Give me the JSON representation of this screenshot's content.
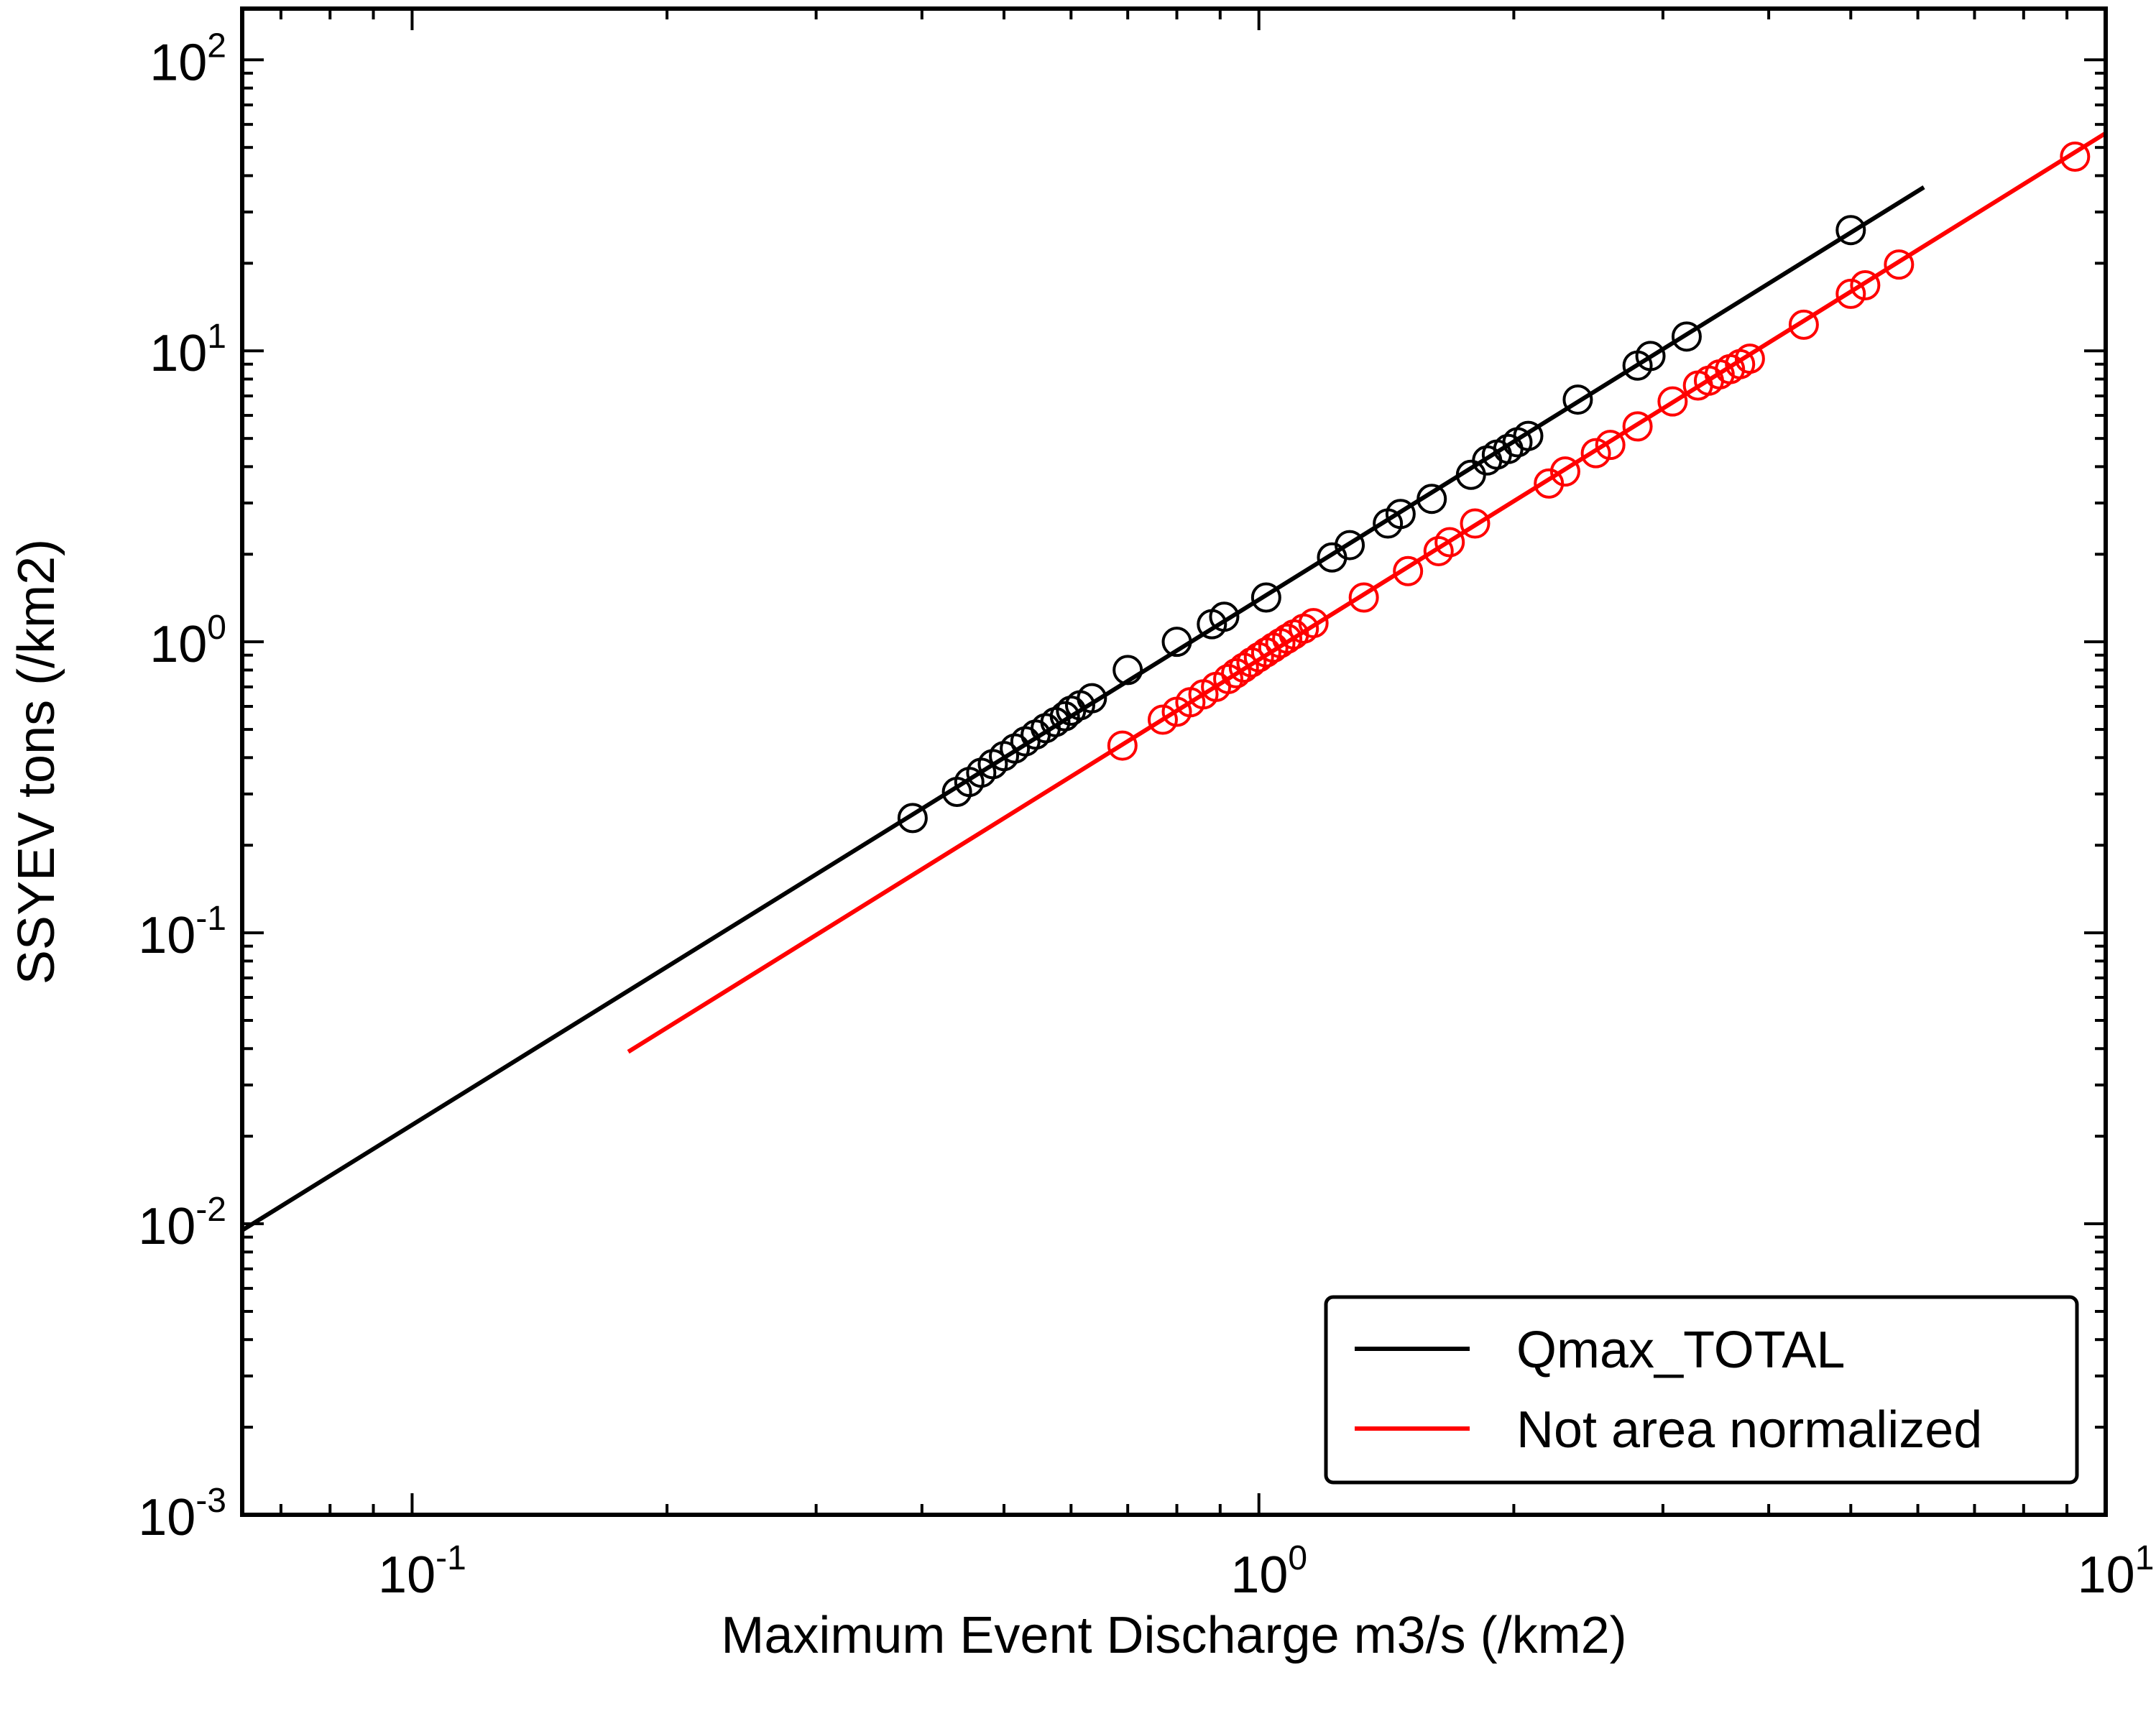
{
  "chart_data": {
    "type": "scatter",
    "xlabel": "Maximum Event Discharge m3/s (/km2)",
    "ylabel": "SSYEV tons (/km2)",
    "xscale": "log",
    "yscale": "log",
    "xlim": [
      0.063,
      10
    ],
    "ylim": [
      0.001,
      150
    ],
    "grid": false,
    "legend_position": "lower-right",
    "x_ticks": [
      {
        "value": 0.1,
        "base": "10",
        "exp": "-1"
      },
      {
        "value": 1,
        "base": "10",
        "exp": "0"
      },
      {
        "value": 10,
        "base": "10",
        "exp": "1"
      }
    ],
    "y_ticks": [
      {
        "value": 0.001,
        "base": "10",
        "exp": "-3"
      },
      {
        "value": 0.01,
        "base": "10",
        "exp": "-2"
      },
      {
        "value": 0.1,
        "base": "10",
        "exp": "-1"
      },
      {
        "value": 1,
        "base": "10",
        "exp": "0"
      },
      {
        "value": 10,
        "base": "10",
        "exp": "1"
      },
      {
        "value": 100,
        "base": "10",
        "exp": "2"
      }
    ],
    "series": [
      {
        "name": "Qmax_TOTAL",
        "color": "#000000",
        "fit_line": {
          "x": [
            0.063,
            6.1
          ],
          "y": [
            0.0095,
            36.5
          ]
        },
        "points": {
          "x": [
            0.39,
            0.44,
            0.455,
            0.47,
            0.485,
            0.5,
            0.515,
            0.53,
            0.545,
            0.56,
            0.575,
            0.59,
            0.6,
            0.615,
            0.635,
            0.7,
            0.8,
            0.88,
            0.91,
            1.02,
            1.22,
            1.28,
            1.42,
            1.47,
            1.6,
            1.78,
            1.86,
            1.91,
            1.97,
            2.02,
            2.08,
            2.38,
            2.8,
            2.9,
            3.2,
            5.0
          ],
          "y": [
            0.248,
            0.305,
            0.33,
            0.355,
            0.38,
            0.405,
            0.43,
            0.455,
            0.48,
            0.505,
            0.53,
            0.555,
            0.58,
            0.605,
            0.64,
            0.8,
            1.0,
            1.15,
            1.22,
            1.42,
            1.95,
            2.15,
            2.55,
            2.75,
            3.1,
            3.75,
            4.2,
            4.4,
            4.6,
            4.85,
            5.1,
            6.8,
            8.9,
            9.6,
            11.2,
            26.0
          ]
        }
      },
      {
        "name": "Not area normalized",
        "color": "#ff0000",
        "fit_line": {
          "x": [
            0.18,
            10
          ],
          "y": [
            0.039,
            56.0
          ]
        },
        "points": {
          "x": [
            0.69,
            0.77,
            0.8,
            0.83,
            0.86,
            0.89,
            0.92,
            0.94,
            0.96,
            0.98,
            1.0,
            1.02,
            1.04,
            1.06,
            1.08,
            1.1,
            1.13,
            1.16,
            1.33,
            1.5,
            1.63,
            1.68,
            1.8,
            2.2,
            2.3,
            2.5,
            2.6,
            2.8,
            3.08,
            3.3,
            3.4,
            3.5,
            3.6,
            3.7,
            3.8,
            4.4,
            5.0,
            5.2,
            5.7,
            9.2
          ],
          "y": [
            0.44,
            0.54,
            0.575,
            0.62,
            0.66,
            0.7,
            0.745,
            0.78,
            0.815,
            0.85,
            0.885,
            0.92,
            0.955,
            0.99,
            1.025,
            1.06,
            1.11,
            1.16,
            1.42,
            1.75,
            2.05,
            2.2,
            2.55,
            3.5,
            3.85,
            4.45,
            4.75,
            5.5,
            6.7,
            7.6,
            7.9,
            8.3,
            8.65,
            9.0,
            9.4,
            12.3,
            15.7,
            16.8,
            19.8,
            46.5
          ]
        }
      }
    ]
  }
}
